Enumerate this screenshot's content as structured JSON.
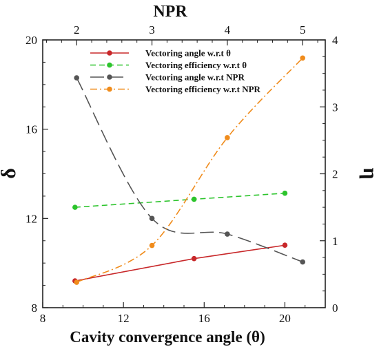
{
  "chart_data": {
    "type": "line",
    "bottom_axis": {
      "label": "Cavity convergence angle (θ)",
      "range": [
        8,
        22
      ],
      "ticks": [
        8,
        12,
        16,
        20
      ],
      "tick_labels": [
        "8",
        "12",
        "16",
        "20"
      ]
    },
    "top_axis": {
      "label": "NPR",
      "range": [
        1.55,
        5.3
      ],
      "ticks": [
        2,
        3,
        4,
        5
      ],
      "tick_labels": [
        "2",
        "3",
        "4",
        "5"
      ]
    },
    "left_axis": {
      "label": "δ",
      "range": [
        8,
        20
      ],
      "ticks": [
        8,
        12,
        16,
        20
      ],
      "tick_labels": [
        "8",
        "12",
        "16",
        "20"
      ]
    },
    "right_axis": {
      "label": "η",
      "range": [
        0,
        4
      ],
      "ticks": [
        0,
        1,
        2,
        3,
        4
      ],
      "tick_labels": [
        "0",
        "1",
        "2",
        "3",
        "4"
      ]
    },
    "grid": false,
    "legend_position": "top-center",
    "series": [
      {
        "name": "Vectoring angle w.r.t θ",
        "color": "#c8282a",
        "dash": "solid",
        "x_axis": "bottom",
        "y_axis": "left",
        "x": [
          9.6,
          15.5,
          20.0
        ],
        "y": [
          9.2,
          10.2,
          10.8
        ]
      },
      {
        "name": "Vectoring efficiency w.r.t θ",
        "color": "#2cc42c",
        "dash": "dashed",
        "x_axis": "bottom",
        "y_axis": "right",
        "x": [
          9.6,
          15.5,
          20.0
        ],
        "y": [
          1.5,
          1.62,
          1.71
        ]
      },
      {
        "name": "Vectoring angle w.r.t NPR",
        "color": "#555555",
        "dash": "longdash",
        "x_axis": "top",
        "y_axis": "left",
        "x": [
          2.0,
          3.0,
          4.0,
          5.0
        ],
        "y": [
          18.3,
          12.0,
          11.3,
          10.05
        ]
      },
      {
        "name": "Vectoring efficiency w.r.t NPR",
        "color": "#f08c1c",
        "dash": "dashdot",
        "x_axis": "top",
        "y_axis": "right",
        "x": [
          2.0,
          3.0,
          4.0,
          5.0
        ],
        "y": [
          0.38,
          0.93,
          2.54,
          3.73
        ]
      }
    ]
  }
}
